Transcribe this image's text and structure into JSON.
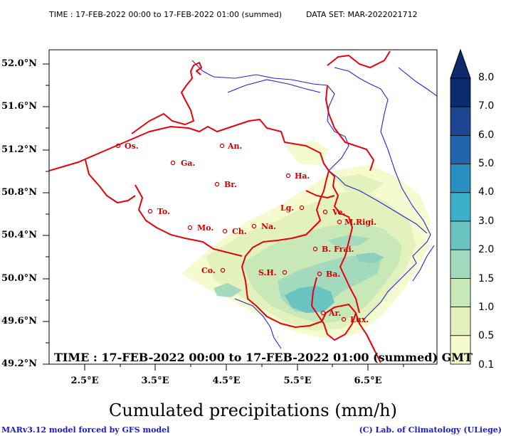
{
  "header": {
    "time_text": "TIME : 17-FEB-2022 00:00 to 17-FEB-2022 01:00 (summed)",
    "dataset_text": "DATA SET: MAR-2022021712"
  },
  "inner_time": "TIME : 17-FEB-2022 00:00 to 17-FEB-2022 01:00 (summed) GMT",
  "title": "Cumulated precipitations (mm/h)",
  "footer": {
    "left": "MARv3.12 model forced by GFS model",
    "right": "(C) Lab. of Climatology (ULiege)"
  },
  "axes": {
    "lat_labels": [
      "52.0°N",
      "51.6°N",
      "51.2°N",
      "50.8°N",
      "50.4°N",
      "50.0°N",
      "49.6°N",
      "49.2°N"
    ],
    "lon_labels": [
      "2.5°E",
      "3.5°E",
      "4.5°E",
      "5.5°E",
      "6.5°E"
    ]
  },
  "colorbar": {
    "labels": [
      "8.0",
      "7.0",
      "6.0",
      "5.0",
      "4.0",
      "3.0",
      "2.0",
      "1.5",
      "1.0",
      "0.5",
      "0.1"
    ],
    "colors": [
      "#0c2a6e",
      "#1e4591",
      "#2166ac",
      "#2a8fc0",
      "#3bb0c9",
      "#6ac3c0",
      "#a3d9bc",
      "#c9e8b8",
      "#e3f2bd",
      "#f6fbcf"
    ]
  },
  "cities": [
    {
      "abbr": "Os."
    },
    {
      "abbr": "An."
    },
    {
      "abbr": "Ga."
    },
    {
      "abbr": "Ha."
    },
    {
      "abbr": "Br."
    },
    {
      "abbr": "To."
    },
    {
      "abbr": "Lg."
    },
    {
      "abbr": "Ve."
    },
    {
      "abbr": "M.Rigi."
    },
    {
      "abbr": "Mo."
    },
    {
      "abbr": "Ch."
    },
    {
      "abbr": "Na."
    },
    {
      "abbr": "B. Frai."
    },
    {
      "abbr": "Co."
    },
    {
      "abbr": "S.H."
    },
    {
      "abbr": "Ba."
    },
    {
      "abbr": "Ar."
    },
    {
      "abbr": "Lux."
    }
  ],
  "colors": {
    "border": "#e8000b",
    "coast": "#2222dd",
    "city": "#cc0000"
  }
}
